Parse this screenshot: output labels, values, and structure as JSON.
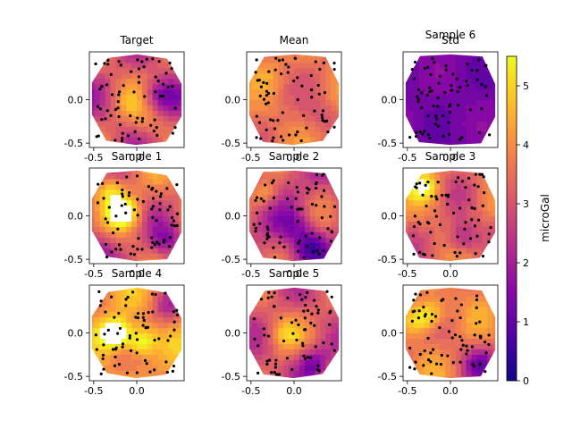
{
  "chart_data": {
    "type": "heatmap",
    "colormap": "plasma",
    "colormap_stops": [
      "#0d0887",
      "#5302a3",
      "#8b0aa5",
      "#b83289",
      "#db5c68",
      "#f48849",
      "#febd2a",
      "#f0f921"
    ],
    "over_color": "#ffffff",
    "marker_color": "#000000",
    "vmin": 0,
    "vmax": 5.5,
    "panels": [
      {
        "title": "Target",
        "xticks": [
          "-0.5",
          "0.0"
        ],
        "yticks": [
          "0.0",
          "-0.5"
        ],
        "seed": 11,
        "base": 3.2,
        "amp": 1.4,
        "hot": [
          [
            0.15,
            -0.25,
            0.6
          ],
          [
            -0.1,
            -0.05,
            0.5
          ]
        ],
        "cold": [
          [
            0.25,
            0.05,
            1.6
          ]
        ]
      },
      {
        "title": "Mean",
        "xticks": [
          "-0.5",
          "0.0"
        ],
        "yticks": [
          "0.0",
          "-0.5"
        ],
        "seed": 23,
        "base": 3.6,
        "amp": 0.7,
        "hot": [
          [
            -0.3,
            0.3,
            0.5
          ]
        ],
        "cold": [
          [
            0.3,
            -0.2,
            0.6
          ]
        ]
      },
      {
        "title": "Std",
        "xticks": [],
        "yticks": [],
        "seed": 0,
        "base": 0,
        "amp": 0,
        "hot": [],
        "cold": [],
        "empty": true
      },
      {
        "title": "Sample 6",
        "xticks": [
          "-0.5",
          "0.0"
        ],
        "yticks": [
          "0.0",
          "-0.5"
        ],
        "seed": 37,
        "base": 1.3,
        "amp": 0.35,
        "hot": [],
        "cold": []
      },
      {
        "title": "Sample 1",
        "xticks": [
          "-0.5",
          "0.0"
        ],
        "yticks": [
          "0.0",
          "-0.5"
        ],
        "seed": 41,
        "base": 3.4,
        "amp": 1.2,
        "hot": [
          [
            -0.15,
            0.05,
            2.6
          ],
          [
            -0.3,
            0.3,
            1.8
          ]
        ],
        "cold": [
          [
            0.35,
            -0.3,
            1.4
          ],
          [
            -0.4,
            -0.35,
            1.3
          ]
        ]
      },
      {
        "title": "Sample 2",
        "xticks": [
          "-0.5",
          "0.0"
        ],
        "yticks": [
          "0.0",
          "-0.5"
        ],
        "seed": 53,
        "base": 2.8,
        "amp": 1.1,
        "hot": [
          [
            -0.35,
            0.25,
            1.5
          ]
        ],
        "cold": [
          [
            0.2,
            -0.35,
            1.9
          ],
          [
            0.0,
            -0.1,
            1.0
          ]
        ]
      },
      {
        "title": "Sample 3",
        "xticks": [
          "-0.5",
          "0.0"
        ],
        "yticks": [
          "0.0",
          "-0.5"
        ],
        "seed": 67,
        "base": 3.5,
        "amp": 1.0,
        "hot": [
          [
            -0.3,
            0.35,
            1.8
          ]
        ],
        "cold": [
          [
            0.15,
            -0.25,
            1.8
          ]
        ]
      },
      {
        "title": "Sample 4",
        "xticks": [
          "-0.5",
          "0.0"
        ],
        "yticks": [
          "0.0",
          "-0.5"
        ],
        "seed": 71,
        "base": 4.0,
        "amp": 1.0,
        "hot": [
          [
            -0.25,
            0.0,
            3.0
          ],
          [
            0.05,
            -0.1,
            2.2
          ]
        ],
        "cold": [
          [
            0.35,
            0.3,
            1.4
          ]
        ]
      },
      {
        "title": "Sample 5",
        "xticks": [
          "-0.5",
          "0.0"
        ],
        "yticks": [
          "0.0",
          "-0.5"
        ],
        "seed": 83,
        "base": 3.2,
        "amp": 1.1,
        "hot": [
          [
            -0.1,
            0.0,
            1.2
          ]
        ],
        "cold": [
          [
            0.2,
            -0.35,
            1.9
          ]
        ]
      },
      {
        "title": "",
        "xticks": [
          "-0.5",
          "0.0"
        ],
        "yticks": [
          "0.0",
          "-0.5"
        ],
        "seed": 97,
        "base": 3.6,
        "amp": 1.0,
        "hot": [
          [
            -0.35,
            0.15,
            1.8
          ],
          [
            -0.2,
            0.25,
            1.5
          ]
        ],
        "cold": [
          [
            0.35,
            -0.35,
            1.8
          ]
        ]
      }
    ],
    "colorbar": {
      "label": "microGal",
      "ticks": [
        "0",
        "1",
        "2",
        "3",
        "4",
        "5"
      ],
      "tick_values": [
        0,
        1,
        2,
        3,
        4,
        5
      ]
    }
  }
}
